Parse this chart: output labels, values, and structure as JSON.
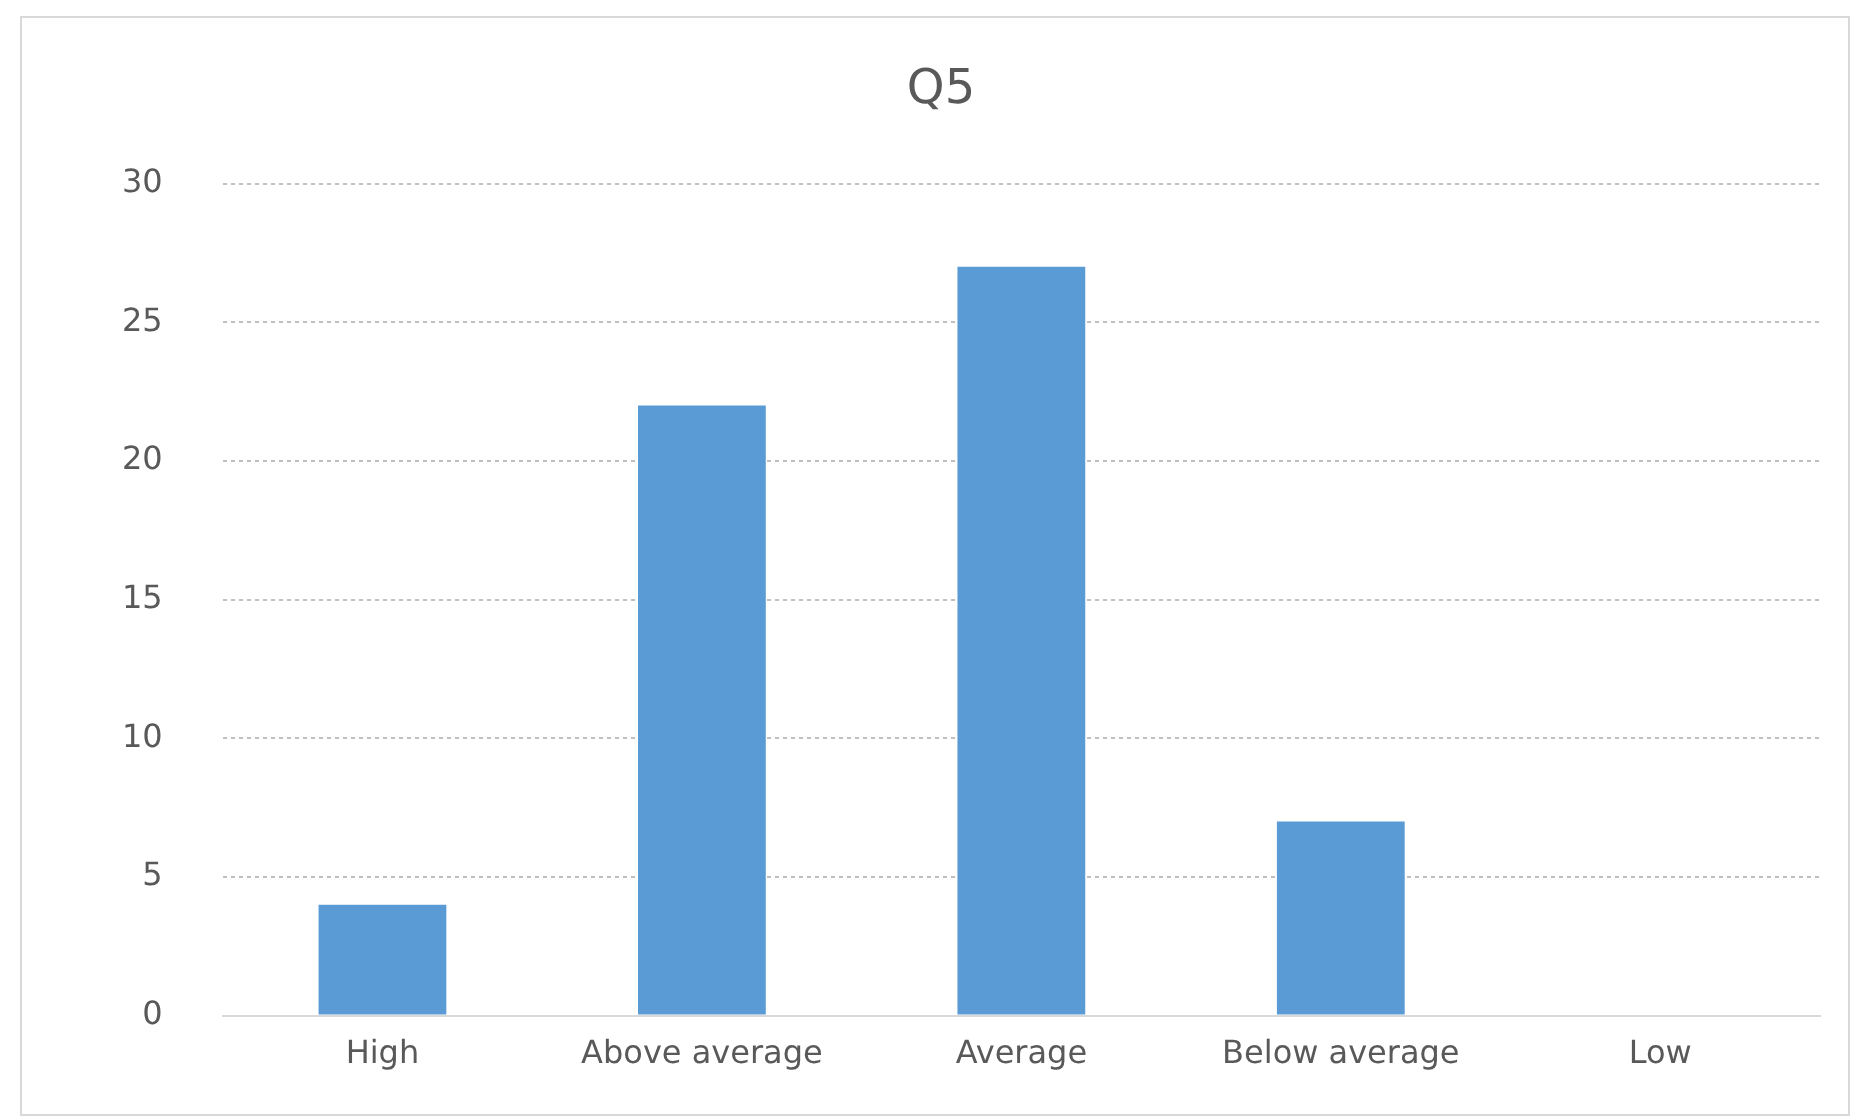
{
  "chart_data": {
    "type": "bar",
    "title": "Q5",
    "categories": [
      "High",
      "Above average",
      "Average",
      "Below average",
      "Low"
    ],
    "values": [
      4,
      22,
      27,
      7,
      0
    ],
    "color": "#5b9bd5",
    "ylim": [
      0,
      30
    ],
    "yticks": [
      0,
      5,
      10,
      15,
      20,
      25,
      30
    ],
    "grid": "y",
    "legend": false
  }
}
